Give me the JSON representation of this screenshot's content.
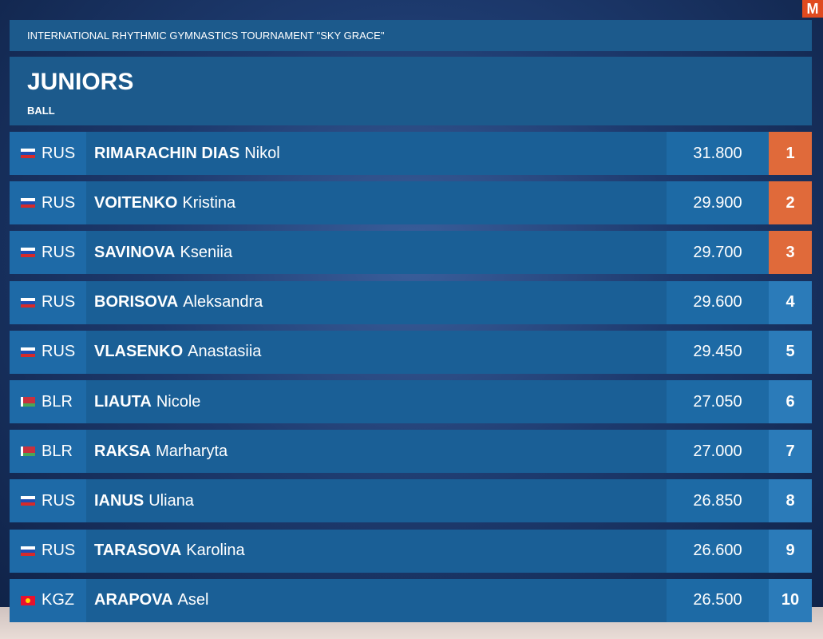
{
  "header": {
    "event": "INTERNATIONAL RHYTHMIC GYMNASTICS TOURNAMENT \"SKY GRACE\"",
    "category": "JUNIORS",
    "apparatus": "BALL"
  },
  "logo": "M",
  "colors": {
    "panel": "#1c5a8c",
    "medal_rank": "#e06a3a",
    "rank": "#2b7bb9"
  },
  "results": [
    {
      "country": "RUS",
      "flag": "flag-russia-icon",
      "surname": "RIMARACHIN DIAS",
      "given": "Nikol",
      "score": "31.800",
      "rank": "1"
    },
    {
      "country": "RUS",
      "flag": "flag-russia-icon",
      "surname": "VOITENKO",
      "given": "Kristina",
      "score": "29.900",
      "rank": "2"
    },
    {
      "country": "RUS",
      "flag": "flag-russia-icon",
      "surname": "SAVINOVA",
      "given": "Kseniia",
      "score": "29.700",
      "rank": "3"
    },
    {
      "country": "RUS",
      "flag": "flag-russia-icon",
      "surname": "BORISOVA",
      "given": "Aleksandra",
      "score": "29.600",
      "rank": "4"
    },
    {
      "country": "RUS",
      "flag": "flag-russia-icon",
      "surname": "VLASENKO",
      "given": "Anastasiia",
      "score": "29.450",
      "rank": "5"
    },
    {
      "country": "BLR",
      "flag": "flag-belarus-icon",
      "surname": "LIAUTA",
      "given": "Nicole",
      "score": "27.050",
      "rank": "6"
    },
    {
      "country": "BLR",
      "flag": "flag-belarus-icon",
      "surname": "RAKSA",
      "given": "Marharyta",
      "score": "27.000",
      "rank": "7"
    },
    {
      "country": "RUS",
      "flag": "flag-russia-icon",
      "surname": "IANUS",
      "given": "Uliana",
      "score": "26.850",
      "rank": "8"
    },
    {
      "country": "RUS",
      "flag": "flag-russia-icon",
      "surname": "TARASOVA",
      "given": "Karolina",
      "score": "26.600",
      "rank": "9"
    },
    {
      "country": "KGZ",
      "flag": "flag-kyrgyzstan-icon",
      "surname": "ARAPOVA",
      "given": "Asel",
      "score": "26.500",
      "rank": "10"
    }
  ]
}
